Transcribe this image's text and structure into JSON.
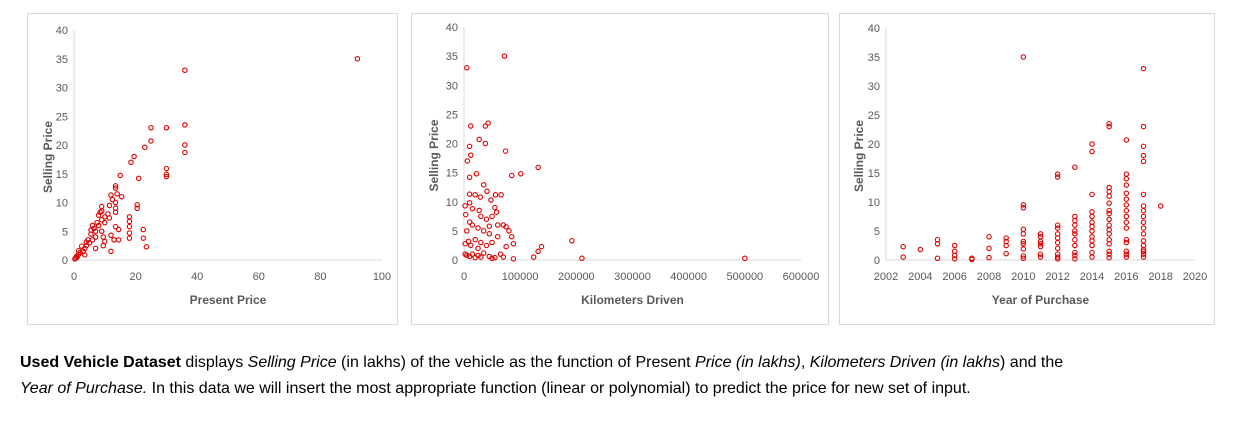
{
  "colors": {
    "marker": "#e00000",
    "axis": "#d9d9d9",
    "text": "#595959"
  },
  "chart_data": [
    {
      "type": "scatter",
      "title": "",
      "xlabel": "Present Price",
      "ylabel": "Selling Price",
      "xlim": [
        0,
        100
      ],
      "ylim": [
        0,
        40
      ],
      "xticks": [
        0,
        20,
        40,
        60,
        80,
        100
      ],
      "yticks": [
        0,
        5,
        10,
        15,
        20,
        25,
        30,
        35,
        40
      ],
      "grid": false,
      "legend": "none",
      "points": [
        [
          92,
          35
        ],
        [
          36,
          33
        ],
        [
          25,
          23
        ],
        [
          30,
          23
        ],
        [
          36,
          23.5
        ],
        [
          36,
          20
        ],
        [
          36,
          18.7
        ],
        [
          25,
          20.7
        ],
        [
          23,
          19.6
        ],
        [
          19.5,
          18
        ],
        [
          18.5,
          17
        ],
        [
          15,
          14.7
        ],
        [
          21,
          14.2
        ],
        [
          30,
          15.9
        ],
        [
          30,
          14.9
        ],
        [
          30,
          14.5
        ],
        [
          13.5,
          12.9
        ],
        [
          13.5,
          12.5
        ],
        [
          12,
          11.3
        ],
        [
          14,
          11.5
        ],
        [
          15.5,
          11
        ],
        [
          13.5,
          10
        ],
        [
          13.5,
          9
        ],
        [
          13.5,
          8.3
        ],
        [
          11.5,
          9.5
        ],
        [
          20.5,
          9.6
        ],
        [
          20.5,
          9
        ],
        [
          9,
          9.3
        ],
        [
          9,
          8.5
        ],
        [
          8,
          7.8
        ],
        [
          10,
          7.5
        ],
        [
          11.5,
          7.3
        ],
        [
          18,
          7.5
        ],
        [
          18,
          6.7
        ],
        [
          18,
          5.8
        ],
        [
          18,
          4.7
        ],
        [
          18,
          3.8
        ],
        [
          22.5,
          5.3
        ],
        [
          22.5,
          3.8
        ],
        [
          23.5,
          2.3
        ],
        [
          12,
          4.3
        ],
        [
          13.5,
          5.8
        ],
        [
          14.5,
          5.3
        ],
        [
          14.5,
          3.5
        ],
        [
          12,
          1.5
        ],
        [
          13,
          3.5
        ],
        [
          10,
          3.2
        ],
        [
          9.5,
          2.5
        ],
        [
          7,
          2
        ],
        [
          7.5,
          6.5
        ],
        [
          6,
          6
        ],
        [
          5.5,
          5.2
        ],
        [
          5.5,
          4.5
        ],
        [
          6,
          3.5
        ],
        [
          4.5,
          3.5
        ],
        [
          4,
          2.5
        ],
        [
          3.5,
          2
        ],
        [
          3,
          1.5
        ],
        [
          3.5,
          0.9
        ],
        [
          2,
          1.3
        ],
        [
          1.5,
          1
        ],
        [
          1,
          0.5
        ],
        [
          0.5,
          0.3
        ],
        [
          0.3,
          0.2
        ],
        [
          0.8,
          0.6
        ],
        [
          7,
          5
        ],
        [
          8,
          6
        ],
        [
          9,
          7
        ],
        [
          9,
          5
        ],
        [
          9.5,
          4
        ],
        [
          10,
          6.5
        ],
        [
          7,
          4
        ],
        [
          5,
          3
        ],
        [
          6.5,
          5.5
        ],
        [
          8.5,
          8.3
        ],
        [
          4,
          3.1
        ],
        [
          2.5,
          2.4
        ],
        [
          1.5,
          1.6
        ],
        [
          11,
          8
        ],
        [
          12.5,
          10.5
        ]
      ]
    },
    {
      "type": "scatter",
      "title": "",
      "xlabel": "Kilometers Driven",
      "ylabel": "Selling Price",
      "xlim": [
        0,
        600000
      ],
      "ylim": [
        0,
        40
      ],
      "xticks": [
        0,
        100000,
        200000,
        300000,
        400000,
        500000,
        600000
      ],
      "yticks": [
        0,
        5,
        10,
        15,
        20,
        25,
        30,
        35,
        40
      ],
      "grid": false,
      "legend": "none",
      "points": [
        [
          72000,
          35
        ],
        [
          5000,
          33
        ],
        [
          12000,
          23
        ],
        [
          38000,
          23
        ],
        [
          43000,
          23.5
        ],
        [
          10000,
          19.5
        ],
        [
          27000,
          20.7
        ],
        [
          38000,
          20
        ],
        [
          12000,
          18
        ],
        [
          6000,
          17
        ],
        [
          74000,
          18.7
        ],
        [
          22000,
          14.8
        ],
        [
          10000,
          14.2
        ],
        [
          85000,
          14.5
        ],
        [
          101000,
          14.8
        ],
        [
          132000,
          15.9
        ],
        [
          35000,
          12.9
        ],
        [
          41000,
          11.8
        ],
        [
          10000,
          11.3
        ],
        [
          20000,
          11.2
        ],
        [
          29000,
          10.8
        ],
        [
          56000,
          11.2
        ],
        [
          66000,
          11.2
        ],
        [
          48000,
          10.3
        ],
        [
          10000,
          9.8
        ],
        [
          2000,
          9.3
        ],
        [
          15000,
          8.8
        ],
        [
          27000,
          8.5
        ],
        [
          55000,
          9
        ],
        [
          58000,
          8.2
        ],
        [
          3000,
          7.8
        ],
        [
          30000,
          7.5
        ],
        [
          40000,
          7
        ],
        [
          50000,
          7.5
        ],
        [
          70000,
          6
        ],
        [
          75000,
          5.7
        ],
        [
          80000,
          5
        ],
        [
          85000,
          4
        ],
        [
          88000,
          2.8
        ],
        [
          75000,
          2.3
        ],
        [
          60000,
          4
        ],
        [
          45000,
          4.5
        ],
        [
          35000,
          5
        ],
        [
          25000,
          5.5
        ],
        [
          15000,
          6
        ],
        [
          5000,
          5
        ],
        [
          10000,
          6.5
        ],
        [
          20000,
          3.5
        ],
        [
          30000,
          3
        ],
        [
          40000,
          2.5
        ],
        [
          50000,
          3
        ],
        [
          65000,
          1
        ],
        [
          70000,
          0.5
        ],
        [
          88000,
          0.2
        ],
        [
          124000,
          0.5
        ],
        [
          132000,
          1.5
        ],
        [
          138000,
          2.3
        ],
        [
          192000,
          3.3
        ],
        [
          210000,
          0.3
        ],
        [
          500000,
          0.3
        ],
        [
          2000,
          1
        ],
        [
          5000,
          0.8
        ],
        [
          10000,
          0.6
        ],
        [
          15000,
          1
        ],
        [
          20000,
          0.4
        ],
        [
          25000,
          0.8
        ],
        [
          30000,
          0.5
        ],
        [
          35000,
          1.2
        ],
        [
          45000,
          0.6
        ],
        [
          50000,
          0.3
        ],
        [
          55000,
          0.4
        ],
        [
          2000,
          2.8
        ],
        [
          12000,
          2.5
        ],
        [
          25000,
          2
        ],
        [
          45000,
          5.8
        ],
        [
          60000,
          6
        ],
        [
          8000,
          3.2
        ]
      ]
    },
    {
      "type": "scatter",
      "title": "",
      "xlabel": "Year of Purchase",
      "ylabel": "Selling Price",
      "xlim": [
        2002,
        2020
      ],
      "ylim": [
        0,
        40
      ],
      "xticks": [
        2002,
        2004,
        2006,
        2008,
        2010,
        2012,
        2014,
        2016,
        2018,
        2020
      ],
      "yticks": [
        0,
        5,
        10,
        15,
        20,
        25,
        30,
        35,
        40
      ],
      "grid": false,
      "legend": "none",
      "points": [
        [
          2003,
          2.3
        ],
        [
          2003,
          0.5
        ],
        [
          2004,
          1.8
        ],
        [
          2005,
          3.5
        ],
        [
          2005,
          2.8
        ],
        [
          2005,
          0.3
        ],
        [
          2006,
          2.5
        ],
        [
          2006,
          1.5
        ],
        [
          2006,
          0.8
        ],
        [
          2006,
          0.2
        ],
        [
          2007,
          0.3
        ],
        [
          2007,
          0.1
        ],
        [
          2008,
          4
        ],
        [
          2008,
          2
        ],
        [
          2008,
          0.4
        ],
        [
          2009,
          3.8
        ],
        [
          2009,
          3.2
        ],
        [
          2009,
          2.5
        ],
        [
          2009,
          1.1
        ],
        [
          2010,
          35
        ],
        [
          2010,
          9.5
        ],
        [
          2010,
          9
        ],
        [
          2010,
          5.3
        ],
        [
          2010,
          4.5
        ],
        [
          2010,
          3.2
        ],
        [
          2010,
          2.8
        ],
        [
          2010,
          1.9
        ],
        [
          2010,
          0.7
        ],
        [
          2010,
          0.3
        ],
        [
          2011,
          4.5
        ],
        [
          2011,
          4
        ],
        [
          2011,
          3.2
        ],
        [
          2011,
          2.8
        ],
        [
          2011,
          2.3
        ],
        [
          2011,
          1
        ],
        [
          2011,
          0.5
        ],
        [
          2012,
          14.8
        ],
        [
          2012,
          14.3
        ],
        [
          2012,
          6
        ],
        [
          2012,
          5.5
        ],
        [
          2012,
          4.5
        ],
        [
          2012,
          3.8
        ],
        [
          2012,
          3
        ],
        [
          2012,
          2
        ],
        [
          2012,
          1
        ],
        [
          2012,
          0.5
        ],
        [
          2012,
          0.2
        ],
        [
          2013,
          16
        ],
        [
          2013,
          7.5
        ],
        [
          2013,
          6.8
        ],
        [
          2013,
          6
        ],
        [
          2013,
          5
        ],
        [
          2013,
          4.5
        ],
        [
          2013,
          3.5
        ],
        [
          2013,
          2.5
        ],
        [
          2013,
          1.3
        ],
        [
          2013,
          0.8
        ],
        [
          2013,
          0.2
        ],
        [
          2014,
          20
        ],
        [
          2014,
          18.7
        ],
        [
          2014,
          11.3
        ],
        [
          2014,
          8.3
        ],
        [
          2014,
          7.5
        ],
        [
          2014,
          6.5
        ],
        [
          2014,
          5.8
        ],
        [
          2014,
          5
        ],
        [
          2014,
          4
        ],
        [
          2014,
          3.3
        ],
        [
          2014,
          2.5
        ],
        [
          2014,
          1.3
        ],
        [
          2014,
          0.5
        ],
        [
          2015,
          23.5
        ],
        [
          2015,
          23
        ],
        [
          2015,
          12.5
        ],
        [
          2015,
          11.8
        ],
        [
          2015,
          11
        ],
        [
          2015,
          9.8
        ],
        [
          2015,
          8.5
        ],
        [
          2015,
          8
        ],
        [
          2015,
          7
        ],
        [
          2015,
          6
        ],
        [
          2015,
          5.2
        ],
        [
          2015,
          4.5
        ],
        [
          2015,
          3.5
        ],
        [
          2015,
          2.8
        ],
        [
          2015,
          1.5
        ],
        [
          2015,
          1
        ],
        [
          2015,
          0.4
        ],
        [
          2016,
          20.7
        ],
        [
          2016,
          14.8
        ],
        [
          2016,
          14
        ],
        [
          2016,
          12.9
        ],
        [
          2016,
          11.5
        ],
        [
          2016,
          10.5
        ],
        [
          2016,
          9.5
        ],
        [
          2016,
          8.5
        ],
        [
          2016,
          7.5
        ],
        [
          2016,
          6.5
        ],
        [
          2016,
          5.5
        ],
        [
          2016,
          3.5
        ],
        [
          2016,
          3
        ],
        [
          2016,
          1.5
        ],
        [
          2016,
          1
        ],
        [
          2016,
          0.5
        ],
        [
          2017,
          33
        ],
        [
          2017,
          23
        ],
        [
          2017,
          19.6
        ],
        [
          2017,
          18
        ],
        [
          2017,
          17
        ],
        [
          2017,
          11.3
        ],
        [
          2017,
          9.3
        ],
        [
          2017,
          8.5
        ],
        [
          2017,
          7.5
        ],
        [
          2017,
          6.5
        ],
        [
          2017,
          5.5
        ],
        [
          2017,
          4.5
        ],
        [
          2017,
          3.3
        ],
        [
          2017,
          2.5
        ],
        [
          2017,
          1.8
        ],
        [
          2017,
          1.5
        ],
        [
          2017,
          1
        ],
        [
          2017,
          0.5
        ],
        [
          2018,
          9.3
        ]
      ]
    }
  ],
  "caption": {
    "line1": [
      {
        "text": "Used Vehicle Dataset",
        "style": "bold"
      },
      {
        "text": " displays ",
        "style": "normal"
      },
      {
        "text": "Selling Price",
        "style": "italic"
      },
      {
        "text": " (in lakhs) of the vehicle as the function of Present ",
        "style": "normal"
      },
      {
        "text": "Price (in lakhs)",
        "style": "italic"
      },
      {
        "text": ", ",
        "style": "normal"
      },
      {
        "text": "Kilometers Driven (in lakhs",
        "style": "italic"
      },
      {
        "text": ") and the",
        "style": "normal"
      }
    ],
    "line2": [
      {
        "text": "Year of Purchase.",
        "style": "italic"
      },
      {
        "text": " In this data we will insert the most appropriate function (linear or polynomial) to predict the price for new set of input.",
        "style": "normal"
      }
    ]
  }
}
